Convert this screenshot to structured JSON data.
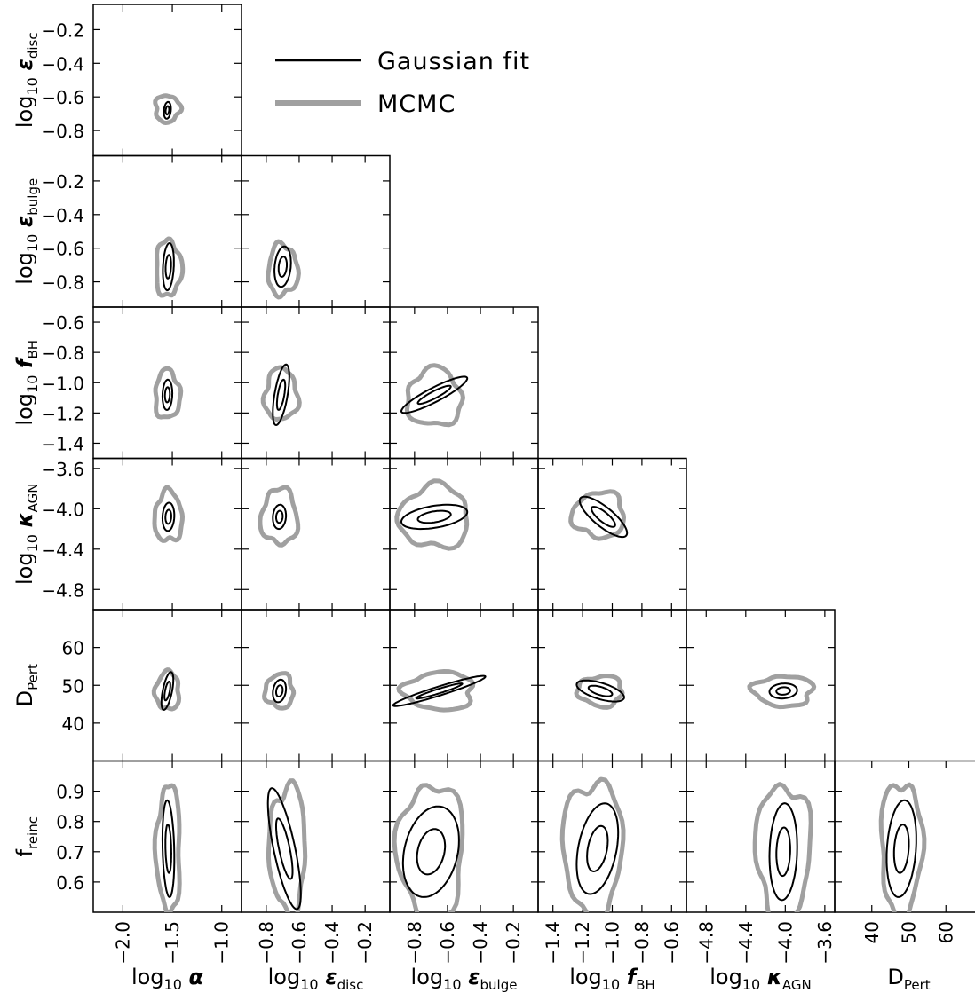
{
  "chart_data": {
    "type": "scatter",
    "subtype": "corner-plot-contours",
    "legend": {
      "placement": "top-right",
      "entries": [
        {
          "label": "Gaussian fit",
          "color": "#000000"
        },
        {
          "label": "MCMC",
          "color": "#a0a0a0"
        }
      ]
    },
    "parameters": [
      {
        "key": "alpha",
        "label": "log10 α",
        "base": "log",
        "sub": "10",
        "sym": "α",
        "symsub": "",
        "range": [
          -2.3,
          -0.8
        ],
        "xticks": [
          -2.0,
          -1.5,
          -1.0
        ],
        "xticklabels": [
          "−2.0",
          "−1.5",
          "−1.0"
        ],
        "yticks": [],
        "yticklabels": []
      },
      {
        "key": "eps_disc",
        "label": "log10 ε_disc",
        "base": "log",
        "sub": "10",
        "sym": "ε",
        "symsub": "disc",
        "range": [
          -0.95,
          -0.05
        ],
        "xticks": [
          -0.8,
          -0.6,
          -0.4,
          -0.2
        ],
        "xticklabels": [
          "−0.8",
          "−0.6",
          "−0.4",
          "−0.2"
        ],
        "yticks": [
          -0.2,
          -0.4,
          -0.6,
          -0.8
        ],
        "yticklabels": [
          "−0.2",
          "−0.4",
          "−0.6",
          "−0.8"
        ]
      },
      {
        "key": "eps_bulge",
        "label": "log10 ε_bulge",
        "base": "log",
        "sub": "10",
        "sym": "ε",
        "symsub": "bulge",
        "range": [
          -0.95,
          -0.05
        ],
        "xticks": [
          -0.8,
          -0.6,
          -0.4,
          -0.2
        ],
        "xticklabels": [
          "−0.8",
          "−0.6",
          "−0.4",
          "−0.2"
        ],
        "yticks": [
          -0.2,
          -0.4,
          -0.6,
          -0.8
        ],
        "yticklabels": [
          "−0.2",
          "−0.4",
          "−0.6",
          "−0.8"
        ]
      },
      {
        "key": "f_BH",
        "label": "log10 f_BH",
        "base": "log",
        "sub": "10",
        "sym": "f",
        "symsub": "BH",
        "range": [
          -1.5,
          -0.5
        ],
        "xticks": [
          -1.4,
          -1.2,
          -1.0,
          -0.8,
          -0.6
        ],
        "xticklabels": [
          "−1.4",
          "−1.2",
          "−1.0",
          "−0.8",
          "−0.6"
        ],
        "yticks": [
          -0.6,
          -0.8,
          -1.0,
          -1.2,
          -1.4
        ],
        "yticklabels": [
          "−0.6",
          "−0.8",
          "−1.0",
          "−1.2",
          "−1.4"
        ]
      },
      {
        "key": "kappa_AGN",
        "label": "log10 κ_AGN",
        "base": "log",
        "sub": "10",
        "sym": "κ",
        "symsub": "AGN",
        "range": [
          -5.0,
          -3.5
        ],
        "xticks": [
          -4.8,
          -4.4,
          -4.0,
          -3.6
        ],
        "xticklabels": [
          "−4.8",
          "−4.4",
          "−4.0",
          "−3.6"
        ],
        "yticks": [
          -3.6,
          -4.0,
          -4.4,
          -4.8
        ],
        "yticklabels": [
          "−3.6",
          "−4.0",
          "−4.4",
          "−4.8"
        ]
      },
      {
        "key": "D_Pert",
        "label": "D_Pert",
        "base": "D",
        "sub": "",
        "sym": "",
        "symsub": "Pert",
        "range": [
          30,
          70
        ],
        "xticks": [
          40,
          50,
          60
        ],
        "xticklabels": [
          "40",
          "50",
          "60"
        ],
        "yticks": [
          60,
          50,
          40
        ],
        "yticklabels": [
          "60",
          "50",
          "40"
        ]
      },
      {
        "key": "f_reinc",
        "label": "f_reinc",
        "base": "f",
        "sub": "",
        "sym": "",
        "symsub": "reinc",
        "range": [
          0.5,
          1.0
        ],
        "xticks": [],
        "xticklabels": [],
        "yticks": [
          0.9,
          0.8,
          0.7,
          0.6
        ],
        "yticklabels": [
          "0.9",
          "0.8",
          "0.7",
          "0.6"
        ]
      }
    ],
    "panels": [
      {
        "x": "alpha",
        "y": "eps_disc",
        "cx": -1.55,
        "cy": -0.68,
        "sx": 0.018,
        "sy": 0.025,
        "rho": 0.2,
        "mcmc": {
          "w": 0.25,
          "h": 0.16,
          "ox": 0,
          "oy": 0.01
        }
      },
      {
        "x": "alpha",
        "y": "eps_bulge",
        "cx": -1.54,
        "cy": -0.71,
        "sx": 0.028,
        "sy": 0.07,
        "rho": 0.2,
        "mcmc": {
          "w": 0.26,
          "h": 0.33,
          "ox": 0,
          "oy": -0.01
        }
      },
      {
        "x": "eps_disc",
        "y": "eps_bulge",
        "cx": -0.7,
        "cy": -0.71,
        "sx": 0.025,
        "sy": 0.06,
        "rho": 0.2,
        "mcmc": {
          "w": 0.18,
          "h": 0.3,
          "ox": 0,
          "oy": -0.02
        }
      },
      {
        "x": "alpha",
        "y": "f_BH",
        "cx": -1.55,
        "cy": -1.08,
        "sx": 0.025,
        "sy": 0.05,
        "rho": 0.1,
        "mcmc": {
          "w": 0.25,
          "h": 0.32,
          "ox": 0,
          "oy": 0
        }
      },
      {
        "x": "eps_disc",
        "y": "f_BH",
        "cx": -0.71,
        "cy": -1.08,
        "sx": 0.025,
        "sy": 0.1,
        "rho": 0.6,
        "mcmc": {
          "w": 0.2,
          "h": 0.34,
          "ox": 0,
          "oy": 0
        }
      },
      {
        "x": "eps_bulge",
        "y": "f_BH",
        "cx": -0.68,
        "cy": -1.08,
        "sx": 0.1,
        "sy": 0.06,
        "rho": 0.9,
        "mcmc": {
          "w": 0.33,
          "h": 0.38,
          "ox": 0,
          "oy": -0.02
        }
      },
      {
        "x": "alpha",
        "y": "kappa_AGN",
        "cx": -1.54,
        "cy": -4.08,
        "sx": 0.03,
        "sy": 0.07,
        "rho": 0.1,
        "mcmc": {
          "w": 0.28,
          "h": 0.5,
          "ox": 0,
          "oy": 0
        }
      },
      {
        "x": "eps_disc",
        "y": "kappa_AGN",
        "cx": -0.72,
        "cy": -4.08,
        "sx": 0.02,
        "sy": 0.06,
        "rho": 0.1,
        "mcmc": {
          "w": 0.22,
          "h": 0.55,
          "ox": 0,
          "oy": 0
        }
      },
      {
        "x": "eps_bulge",
        "y": "kappa_AGN",
        "cx": -0.68,
        "cy": -4.08,
        "sx": 0.1,
        "sy": 0.06,
        "rho": 0.4,
        "mcmc": {
          "w": 0.42,
          "h": 0.62,
          "ox": 0,
          "oy": 0
        }
      },
      {
        "x": "f_BH",
        "y": "kappa_AGN",
        "cx": -1.06,
        "cy": -4.08,
        "sx": 0.08,
        "sy": 0.1,
        "rho": -0.8,
        "mcmc": {
          "w": 0.35,
          "h": 0.45,
          "ox": -0.03,
          "oy": 0.02
        }
      },
      {
        "x": "alpha",
        "y": "D_Pert",
        "cx": -1.55,
        "cy": 48.5,
        "sx": 0.03,
        "sy": 2.5,
        "rho": 0.6,
        "mcmc": {
          "w": 0.24,
          "h": 10,
          "ox": 0,
          "oy": 0
        }
      },
      {
        "x": "eps_disc",
        "y": "D_Pert",
        "cx": -0.72,
        "cy": 48.5,
        "sx": 0.02,
        "sy": 1.5,
        "rho": 0.2,
        "mcmc": {
          "w": 0.17,
          "h": 9,
          "ox": 0,
          "oy": 0
        }
      },
      {
        "x": "eps_bulge",
        "y": "D_Pert",
        "cx": -0.65,
        "cy": 48.5,
        "sx": 0.14,
        "sy": 2.0,
        "rho": 0.95,
        "mcmc": {
          "w": 0.42,
          "h": 10,
          "ox": 0,
          "oy": 0
        }
      },
      {
        "x": "f_BH",
        "y": "D_Pert",
        "cx": -1.08,
        "cy": 48.5,
        "sx": 0.08,
        "sy": 1.4,
        "rho": -0.6,
        "mcmc": {
          "w": 0.3,
          "h": 8,
          "ox": 0,
          "oy": 0
        }
      },
      {
        "x": "kappa_AGN",
        "y": "D_Pert",
        "cx": -4.02,
        "cy": 48.5,
        "sx": 0.07,
        "sy": 1.0,
        "rho": 0.1,
        "mcmc": {
          "w": 0.6,
          "h": 8,
          "ox": 0,
          "oy": 0
        }
      },
      {
        "x": "alpha",
        "y": "f_reinc",
        "cx": -1.54,
        "cy": 0.71,
        "sx": 0.03,
        "sy": 0.08,
        "rho": -0.2,
        "mcmc": {
          "w": 0.24,
          "h": 0.42,
          "ox": 0,
          "oy": 0
        }
      },
      {
        "x": "eps_disc",
        "y": "f_reinc",
        "cx": -0.69,
        "cy": 0.71,
        "sx": 0.05,
        "sy": 0.1,
        "rho": -0.75,
        "mcmc": {
          "w": 0.22,
          "h": 0.42,
          "ox": 0.02,
          "oy": 0
        }
      },
      {
        "x": "eps_bulge",
        "y": "f_reinc",
        "cx": -0.7,
        "cy": 0.7,
        "sx": 0.085,
        "sy": 0.075,
        "rho": 0.25,
        "mcmc": {
          "w": 0.4,
          "h": 0.45,
          "ox": 0,
          "oy": 0
        }
      },
      {
        "x": "f_BH",
        "y": "f_reinc",
        "cx": -1.1,
        "cy": 0.71,
        "sx": 0.07,
        "sy": 0.075,
        "rho": 0.35,
        "mcmc": {
          "w": 0.4,
          "h": 0.45,
          "ox": -0.03,
          "oy": 0
        }
      },
      {
        "x": "kappa_AGN",
        "y": "f_reinc",
        "cx": -4.02,
        "cy": 0.7,
        "sx": 0.07,
        "sy": 0.08,
        "rho": 0.1,
        "mcmc": {
          "w": 0.55,
          "h": 0.45,
          "ox": 0,
          "oy": 0
        }
      },
      {
        "x": "D_Pert",
        "y": "f_reinc",
        "cx": 48.0,
        "cy": 0.71,
        "sx": 2.0,
        "sy": 0.08,
        "rho": 0.2,
        "mcmc": {
          "w": 11,
          "h": 0.45,
          "ox": 0,
          "oy": 0
        }
      }
    ],
    "contour_levels_sigma": [
      1,
      2
    ]
  }
}
